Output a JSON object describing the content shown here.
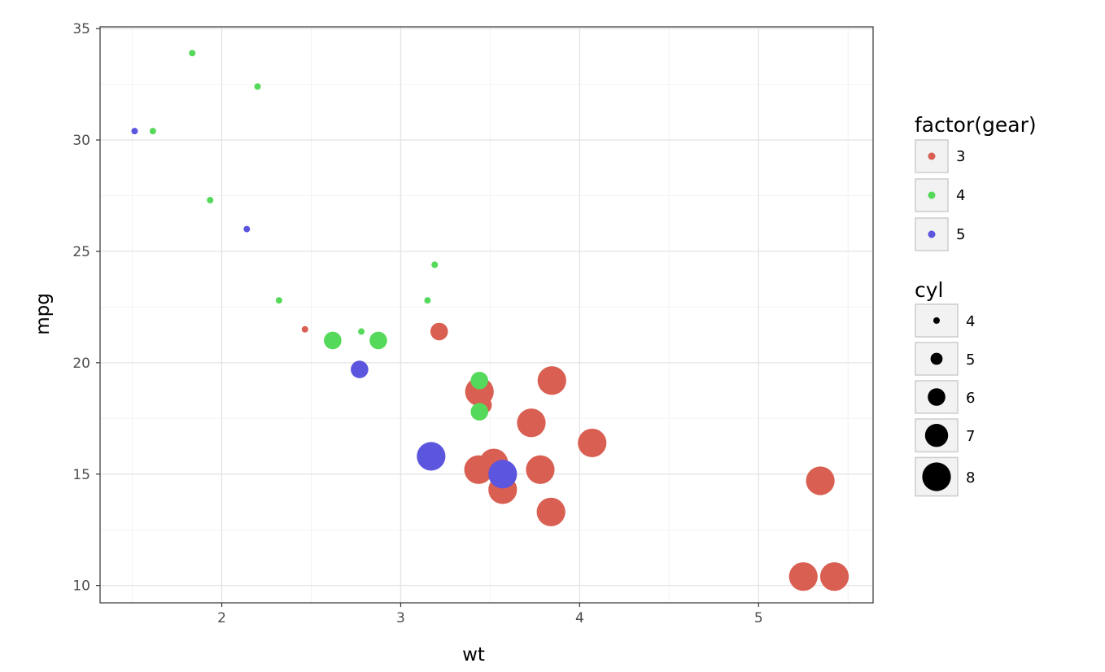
{
  "chart_data": {
    "type": "scatter",
    "xlabel": "wt",
    "ylabel": "mpg",
    "xlim": [
      1.32,
      5.64
    ],
    "ylim": [
      9.22,
      35.08
    ],
    "x_ticks": [
      2,
      3,
      4,
      5
    ],
    "x_tick_labels": [
      "2",
      "3",
      "4",
      "5"
    ],
    "y_ticks": [
      10,
      15,
      20,
      25,
      30,
      35
    ],
    "y_tick_labels": [
      "10",
      "15",
      "20",
      "25",
      "30",
      "35"
    ],
    "grid": true,
    "legend_position": "right",
    "color_legend": {
      "title": "factor(gear)",
      "entries": [
        {
          "label": "3",
          "color": "#d95f52"
        },
        {
          "label": "4",
          "color": "#55d95a"
        },
        {
          "label": "5",
          "color": "#5c55de"
        }
      ]
    },
    "size_legend": {
      "title": "cyl",
      "entries": [
        {
          "label": "4",
          "cyl": 4
        },
        {
          "label": "5",
          "cyl": 5
        },
        {
          "label": "6",
          "cyl": 6
        },
        {
          "label": "7",
          "cyl": 7
        },
        {
          "label": "8",
          "cyl": 8
        }
      ]
    },
    "points": [
      {
        "wt": 2.62,
        "mpg": 21.0,
        "gear": "4",
        "cyl": 6
      },
      {
        "wt": 2.875,
        "mpg": 21.0,
        "gear": "4",
        "cyl": 6
      },
      {
        "wt": 2.32,
        "mpg": 22.8,
        "gear": "4",
        "cyl": 4
      },
      {
        "wt": 3.215,
        "mpg": 21.4,
        "gear": "3",
        "cyl": 6
      },
      {
        "wt": 3.44,
        "mpg": 18.7,
        "gear": "3",
        "cyl": 8
      },
      {
        "wt": 3.46,
        "mpg": 18.1,
        "gear": "3",
        "cyl": 6
      },
      {
        "wt": 3.57,
        "mpg": 14.3,
        "gear": "3",
        "cyl": 8
      },
      {
        "wt": 3.19,
        "mpg": 24.4,
        "gear": "4",
        "cyl": 4
      },
      {
        "wt": 3.15,
        "mpg": 22.8,
        "gear": "4",
        "cyl": 4
      },
      {
        "wt": 3.44,
        "mpg": 19.2,
        "gear": "4",
        "cyl": 6
      },
      {
        "wt": 3.44,
        "mpg": 17.8,
        "gear": "4",
        "cyl": 6
      },
      {
        "wt": 4.07,
        "mpg": 16.4,
        "gear": "3",
        "cyl": 8
      },
      {
        "wt": 3.73,
        "mpg": 17.3,
        "gear": "3",
        "cyl": 8
      },
      {
        "wt": 3.78,
        "mpg": 15.2,
        "gear": "3",
        "cyl": 8
      },
      {
        "wt": 5.25,
        "mpg": 10.4,
        "gear": "3",
        "cyl": 8
      },
      {
        "wt": 5.424,
        "mpg": 10.4,
        "gear": "3",
        "cyl": 8
      },
      {
        "wt": 5.345,
        "mpg": 14.7,
        "gear": "3",
        "cyl": 8
      },
      {
        "wt": 2.2,
        "mpg": 32.4,
        "gear": "4",
        "cyl": 4
      },
      {
        "wt": 1.615,
        "mpg": 30.4,
        "gear": "4",
        "cyl": 4
      },
      {
        "wt": 1.835,
        "mpg": 33.9,
        "gear": "4",
        "cyl": 4
      },
      {
        "wt": 2.465,
        "mpg": 21.5,
        "gear": "3",
        "cyl": 4
      },
      {
        "wt": 3.52,
        "mpg": 15.5,
        "gear": "3",
        "cyl": 8
      },
      {
        "wt": 3.435,
        "mpg": 15.2,
        "gear": "3",
        "cyl": 8
      },
      {
        "wt": 3.84,
        "mpg": 13.3,
        "gear": "3",
        "cyl": 8
      },
      {
        "wt": 3.845,
        "mpg": 19.2,
        "gear": "3",
        "cyl": 8
      },
      {
        "wt": 1.935,
        "mpg": 27.3,
        "gear": "4",
        "cyl": 4
      },
      {
        "wt": 2.14,
        "mpg": 26.0,
        "gear": "5",
        "cyl": 4
      },
      {
        "wt": 1.513,
        "mpg": 30.4,
        "gear": "5",
        "cyl": 4
      },
      {
        "wt": 3.17,
        "mpg": 15.8,
        "gear": "5",
        "cyl": 8
      },
      {
        "wt": 2.77,
        "mpg": 19.7,
        "gear": "5",
        "cyl": 6
      },
      {
        "wt": 3.57,
        "mpg": 15.0,
        "gear": "5",
        "cyl": 8
      },
      {
        "wt": 2.78,
        "mpg": 21.4,
        "gear": "4",
        "cyl": 4
      }
    ]
  }
}
